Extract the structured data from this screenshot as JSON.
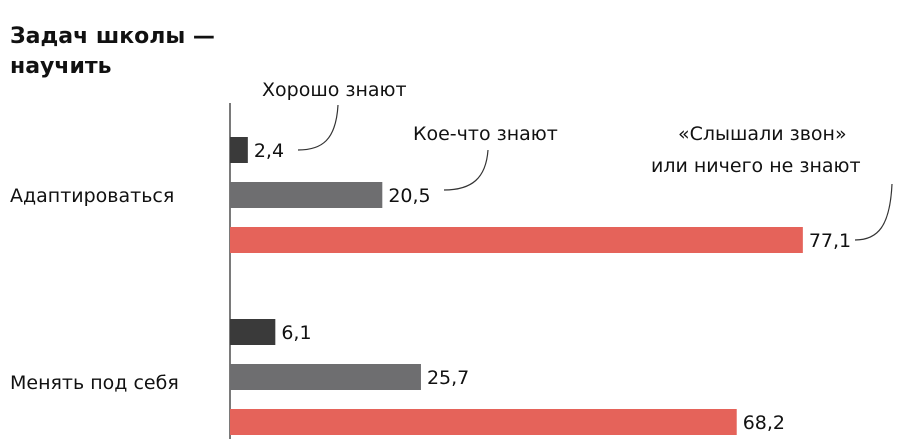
{
  "chart_data": {
    "type": "bar",
    "orientation": "horizontal",
    "title_lines": [
      "Задач школы —",
      "научить"
    ],
    "categories": [
      "Адаптироваться",
      "Менять под себя"
    ],
    "series": [
      {
        "name": "Хорошо знают",
        "values": [
          "2,4",
          "6,1"
        ],
        "color": "#3a3a3a"
      },
      {
        "name": "Кое-что знают",
        "values": [
          "20,5",
          "25,7"
        ],
        "color": "#6e6e70"
      },
      {
        "name_lines": [
          "«Слышали звон»",
          "или ничего не знают"
        ],
        "values": [
          "77,1",
          "68,2"
        ],
        "color": "#e5635a"
      }
    ],
    "xlim": [
      0,
      100
    ],
    "grid": false,
    "legend": "annotations"
  }
}
